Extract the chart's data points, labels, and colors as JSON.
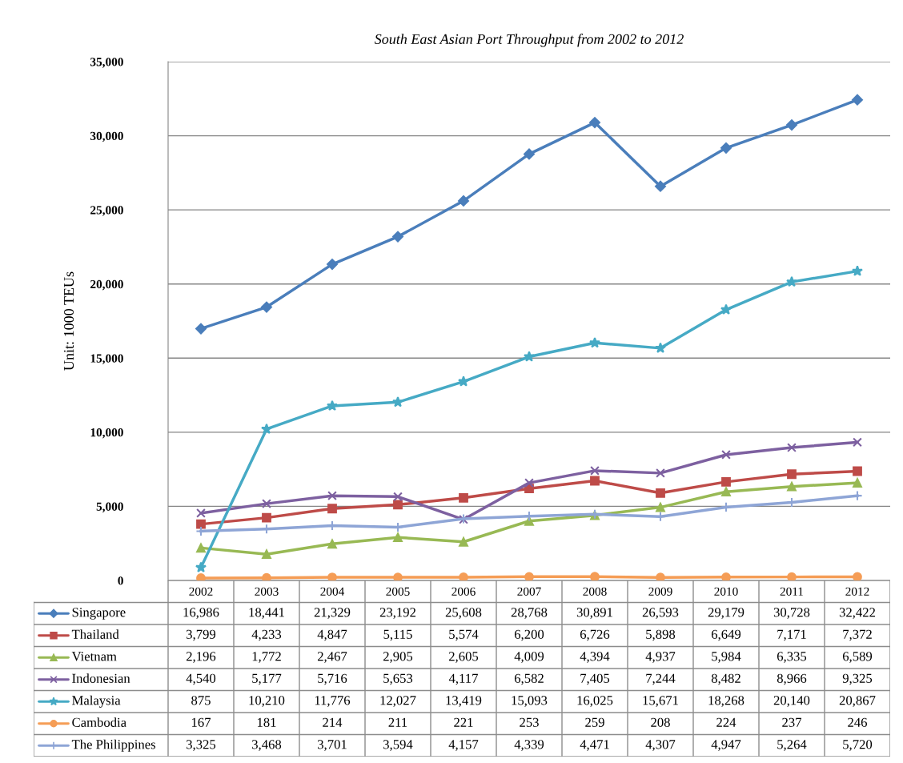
{
  "chart_data": {
    "type": "line",
    "title": "South East Asian Port Throughput from 2002 to 2012",
    "ylabel": "Unit: 1000 TEUs",
    "categories": [
      "2002",
      "2003",
      "2004",
      "2005",
      "2006",
      "2007",
      "2008",
      "2009",
      "2010",
      "2011",
      "2012"
    ],
    "series": [
      {
        "name": "Singapore",
        "color": "#4a7ebb",
        "marker": "diamond",
        "values": [
          16986,
          18441,
          21329,
          23192,
          25608,
          28768,
          30891,
          26593,
          29179,
          30728,
          32422
        ],
        "value_labels": [
          "16,986",
          "18,441",
          "21,329",
          "23,192",
          "25,608",
          "28,768",
          "30,891",
          "26,593",
          "29,179",
          "30,728",
          "32,422"
        ]
      },
      {
        "name": "Thailand",
        "color": "#be4b48",
        "marker": "square",
        "values": [
          3799,
          4233,
          4847,
          5115,
          5574,
          6200,
          6726,
          5898,
          6649,
          7171,
          7372
        ],
        "value_labels": [
          "3,799",
          "4,233",
          "4,847",
          "5,115",
          "5,574",
          "6,200",
          "6,726",
          "5,898",
          "6,649",
          "7,171",
          "7,372"
        ]
      },
      {
        "name": "Vietnam",
        "color": "#98b954",
        "marker": "triangle",
        "values": [
          2196,
          1772,
          2467,
          2905,
          2605,
          4009,
          4394,
          4937,
          5984,
          6335,
          6589
        ],
        "value_labels": [
          "2,196",
          "1,772",
          "2,467",
          "2,905",
          "2,605",
          "4,009",
          "4,394",
          "4,937",
          "5,984",
          "6,335",
          "6,589"
        ]
      },
      {
        "name": "Indonesian",
        "color": "#7d60a0",
        "marker": "cross",
        "values": [
          4540,
          5177,
          5716,
          5653,
          4117,
          6582,
          7405,
          7244,
          8482,
          8966,
          9325
        ],
        "value_labels": [
          "4,540",
          "5,177",
          "5,716",
          "5,653",
          "4,117",
          "6,582",
          "7,405",
          "7,244",
          "8,482",
          "8,966",
          "9,325"
        ]
      },
      {
        "name": "Malaysia",
        "color": "#46aac5",
        "marker": "star",
        "values": [
          875,
          10210,
          11776,
          12027,
          13419,
          15093,
          16025,
          15671,
          18268,
          20140,
          20867
        ],
        "value_labels": [
          "875",
          "10,210",
          "11,776",
          "12,027",
          "13,419",
          "15,093",
          "16,025",
          "15,671",
          "18,268",
          "20,140",
          "20,867"
        ]
      },
      {
        "name": "Cambodia",
        "color": "#f59d56",
        "marker": "circle",
        "values": [
          167,
          181,
          214,
          211,
          221,
          253,
          259,
          208,
          224,
          237,
          246
        ],
        "value_labels": [
          "167",
          "181",
          "214",
          "211",
          "221",
          "253",
          "259",
          "208",
          "224",
          "237",
          "246"
        ]
      },
      {
        "name": "The Philippines",
        "color": "#8ea5d6",
        "marker": "plus",
        "values": [
          3325,
          3468,
          3701,
          3594,
          4157,
          4339,
          4471,
          4307,
          4947,
          5264,
          5720
        ],
        "value_labels": [
          "3,325",
          "3,468",
          "3,701",
          "3,594",
          "4,157",
          "4,339",
          "4,471",
          "4,307",
          "4,947",
          "5,264",
          "5,720"
        ]
      }
    ],
    "ylim": [
      0,
      35000
    ],
    "yticks": [
      0,
      {
        "value": 5000,
        "label": "5,000"
      },
      {
        "value": 10000,
        "label": "10,000"
      },
      {
        "value": 15000,
        "label": "15,000"
      },
      {
        "value": 20000,
        "label": "20,000"
      },
      {
        "value": 25000,
        "label": "25,000"
      },
      {
        "value": 30000,
        "label": "30,000"
      },
      {
        "value": 35000,
        "label": "35,000"
      }
    ],
    "grid": "y",
    "legend": "bottom",
    "line_style": "solid"
  }
}
